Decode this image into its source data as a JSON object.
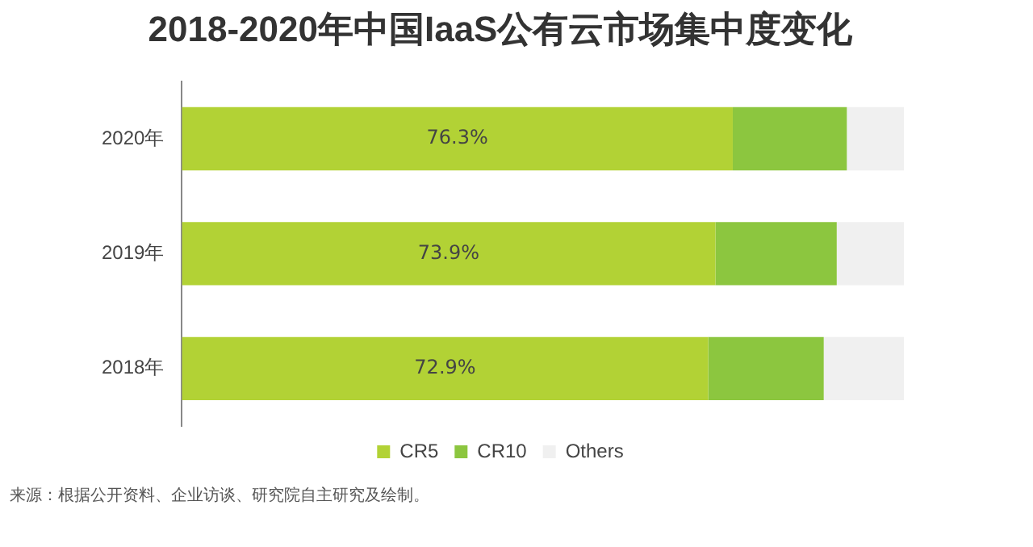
{
  "chart_data": {
    "type": "bar",
    "orientation": "horizontal",
    "stacked": true,
    "title": "2018-2020年中国IaaS公有云市场集中度变化",
    "categories": [
      "2020年",
      "2019年",
      "2018年"
    ],
    "series": [
      {
        "name": "CR5",
        "color": "#b2d235",
        "values": [
          76.3,
          73.9,
          72.9
        ],
        "value_labels": [
          "76.3%",
          "73.9%",
          "72.9%"
        ]
      },
      {
        "name": "CR10",
        "color": "#8cc63f",
        "values": [
          15.8,
          16.8,
          16.0
        ]
      },
      {
        "name": "Others",
        "color": "#f0f0f0",
        "values": [
          7.9,
          9.3,
          11.1
        ]
      }
    ],
    "xlim": [
      0,
      100
    ],
    "tick_labels": "y",
    "legend": "bottom",
    "annotations": [
      "来源：根据公开资料、企业访谈、研究院自主研究及绘制。"
    ]
  }
}
